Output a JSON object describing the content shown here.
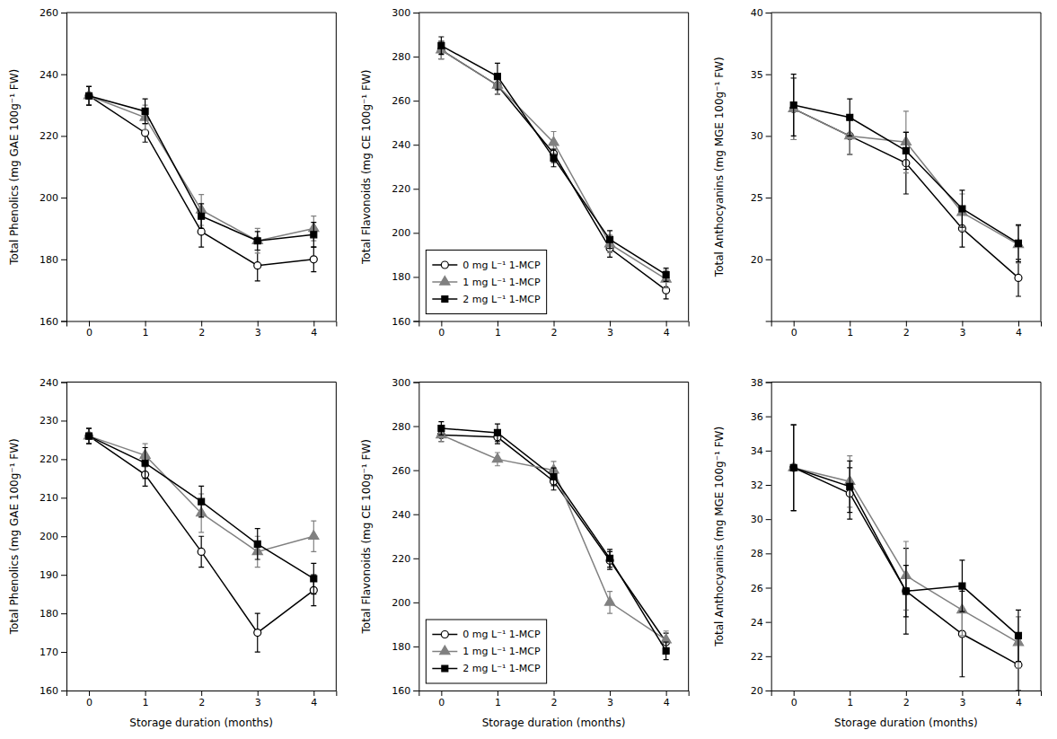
{
  "chart_data": [
    {
      "type": "line",
      "x": [
        0,
        1,
        2,
        3,
        4
      ],
      "xlim": [
        -0.4,
        4.4
      ],
      "xticks": [
        0,
        1,
        2,
        3,
        4
      ],
      "ylabel": "Total Phenolics (mg GAE 100g⁻¹ FW)",
      "ylim": [
        160,
        260
      ],
      "yticks": [
        160,
        180,
        200,
        220,
        240,
        260
      ],
      "series": [
        {
          "color": "#000000",
          "marker": "circle",
          "values": [
            233,
            221,
            189,
            178,
            180
          ],
          "errors": [
            3,
            3,
            5,
            5,
            4
          ]
        },
        {
          "color": "#808080",
          "marker": "triangle",
          "values": [
            233,
            226,
            196,
            186,
            190
          ],
          "errors": [
            3,
            4,
            5,
            4,
            4
          ]
        },
        {
          "color": "#000000",
          "marker": "square",
          "values": [
            233,
            228,
            194,
            186,
            188
          ],
          "errors": [
            3,
            4,
            4,
            3,
            4
          ]
        }
      ]
    },
    {
      "type": "line",
      "x": [
        0,
        1,
        2,
        3,
        4
      ],
      "xlim": [
        -0.4,
        4.4
      ],
      "xticks": [
        0,
        1,
        2,
        3,
        4
      ],
      "ylabel": "Total Flavonoids (mg CE 100g⁻¹ FW)",
      "ylim": [
        160,
        300
      ],
      "yticks": [
        160,
        180,
        200,
        220,
        240,
        260,
        280,
        300
      ],
      "legend": "lower left",
      "series": [
        {
          "name": "0 mg L⁻¹ 1-MCP",
          "color": "#000000",
          "marker": "circle",
          "values": [
            283,
            267,
            236,
            193,
            174
          ],
          "errors": [
            4,
            4,
            4,
            4,
            4
          ]
        },
        {
          "name": "1 mg L⁻¹ 1-MCP",
          "color": "#808080",
          "marker": "triangle",
          "values": [
            283,
            267,
            241,
            195,
            179
          ],
          "errors": [
            4,
            4,
            5,
            4,
            4
          ]
        },
        {
          "name": "2 mg L⁻¹ 1-MCP",
          "color": "#000000",
          "marker": "square",
          "values": [
            285,
            271,
            234,
            197,
            181
          ],
          "errors": [
            4,
            6,
            4,
            4,
            3
          ]
        }
      ]
    },
    {
      "type": "line",
      "x": [
        0,
        1,
        2,
        3,
        4
      ],
      "xlim": [
        -0.4,
        4.4
      ],
      "xticks": [
        0,
        1,
        2,
        3,
        4
      ],
      "ylabel": "Total Anthocyanins (mg MGE 100g⁻¹ FW)",
      "ylim": [
        15,
        40
      ],
      "yticks": [
        20,
        25,
        30,
        35,
        40
      ],
      "series": [
        {
          "color": "#000000",
          "marker": "circle",
          "values": [
            32.2,
            30.0,
            27.8,
            22.5,
            18.5
          ],
          "errors": [
            2.5,
            1.5,
            2.5,
            1.5,
            1.5
          ]
        },
        {
          "color": "#808080",
          "marker": "triangle",
          "values": [
            32.2,
            30.0,
            29.5,
            23.8,
            21.2
          ],
          "errors": [
            2.5,
            1.5,
            2.5,
            1.5,
            1.5
          ]
        },
        {
          "color": "#000000",
          "marker": "square",
          "values": [
            32.5,
            31.5,
            28.8,
            24.1,
            21.3
          ],
          "errors": [
            2.5,
            1.5,
            1.5,
            1.5,
            1.5
          ]
        }
      ]
    },
    {
      "type": "line",
      "x": [
        0,
        1,
        2,
        3,
        4
      ],
      "xlabel": "Storage duration (months)",
      "xlim": [
        -0.4,
        4.4
      ],
      "xticks": [
        0,
        1,
        2,
        3,
        4
      ],
      "ylabel": "Total Phenolics (mg GAE 100g⁻¹ FW)",
      "ylim": [
        160,
        240
      ],
      "yticks": [
        160,
        170,
        180,
        190,
        200,
        210,
        220,
        230,
        240
      ],
      "series": [
        {
          "color": "#000000",
          "marker": "circle",
          "values": [
            226,
            216,
            196,
            175,
            186
          ],
          "errors": [
            2,
            3,
            4,
            5,
            4
          ]
        },
        {
          "color": "#808080",
          "marker": "triangle",
          "values": [
            226,
            221,
            206,
            196,
            200
          ],
          "errors": [
            2,
            3,
            5,
            4,
            4
          ]
        },
        {
          "color": "#000000",
          "marker": "square",
          "values": [
            226,
            219,
            209,
            198,
            189
          ],
          "errors": [
            2,
            4,
            4,
            4,
            4
          ]
        }
      ]
    },
    {
      "type": "line",
      "x": [
        0,
        1,
        2,
        3,
        4
      ],
      "xlabel": "Storage duration (months)",
      "xlim": [
        -0.4,
        4.4
      ],
      "xticks": [
        0,
        1,
        2,
        3,
        4
      ],
      "ylabel": "Total Flavonoids (mg CE 100g⁻¹ FW)",
      "ylim": [
        160,
        300
      ],
      "yticks": [
        160,
        180,
        200,
        220,
        240,
        260,
        280,
        300
      ],
      "legend": "lower left",
      "series": [
        {
          "name": "0 mg L⁻¹ 1-MCP",
          "color": "#000000",
          "marker": "circle",
          "values": [
            276,
            275,
            255,
            219,
            182
          ],
          "errors": [
            3,
            3,
            4,
            4,
            4
          ]
        },
        {
          "name": "1 mg L⁻¹ 1-MCP",
          "color": "#808080",
          "marker": "triangle",
          "values": [
            276,
            265,
            260,
            200,
            183
          ],
          "errors": [
            3,
            3,
            4,
            5,
            4
          ]
        },
        {
          "name": "2 mg L⁻¹ 1-MCP",
          "color": "#000000",
          "marker": "square",
          "values": [
            279,
            277,
            257,
            220,
            178
          ],
          "errors": [
            3,
            4,
            4,
            4,
            4
          ]
        }
      ]
    },
    {
      "type": "line",
      "x": [
        0,
        1,
        2,
        3,
        4
      ],
      "xlabel": "Storage duration (months)",
      "xlim": [
        -0.4,
        4.4
      ],
      "xticks": [
        0,
        1,
        2,
        3,
        4
      ],
      "ylabel": "Total Anthocyanins (mg MGE 100g⁻¹ FW)",
      "ylim": [
        20,
        38
      ],
      "yticks": [
        20,
        22,
        24,
        26,
        28,
        30,
        32,
        34,
        36,
        38
      ],
      "series": [
        {
          "color": "#000000",
          "marker": "circle",
          "values": [
            33.0,
            31.5,
            25.8,
            23.3,
            21.5
          ],
          "errors": [
            2.5,
            1.5,
            2.5,
            2.5,
            1.5
          ]
        },
        {
          "color": "#808080",
          "marker": "triangle",
          "values": [
            33.0,
            32.2,
            26.7,
            24.7,
            22.8
          ],
          "errors": [
            2.5,
            1.5,
            2.0,
            1.5,
            1.5
          ]
        },
        {
          "color": "#000000",
          "marker": "square",
          "values": [
            33.0,
            31.9,
            25.8,
            26.1,
            23.2
          ],
          "errors": [
            2.5,
            1.5,
            1.5,
            1.5,
            1.5
          ]
        }
      ]
    }
  ]
}
